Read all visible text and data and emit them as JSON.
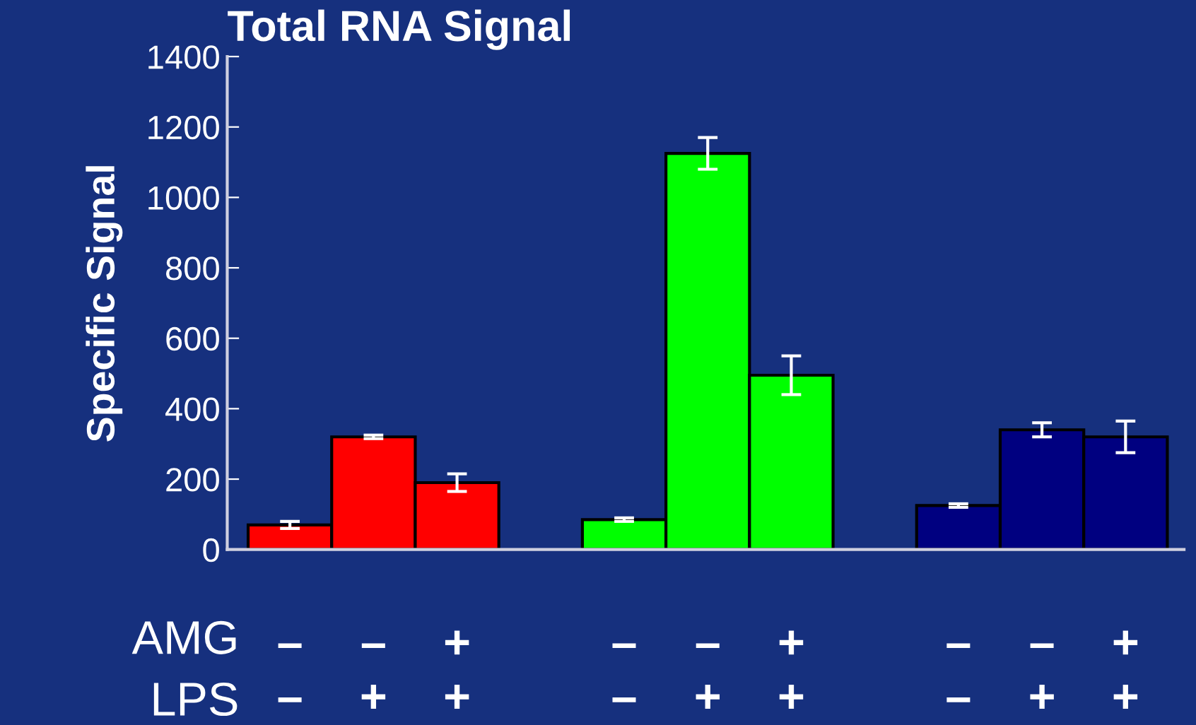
{
  "chart_data": {
    "type": "bar",
    "title": "Total RNA Signal",
    "ylabel": "Specific Signal",
    "categories": [
      "–\n–",
      "–\n+",
      "+\n+",
      null,
      "–\n–",
      "–\n+",
      "+\n+",
      null,
      "–\n–",
      "–\n+",
      "+\n+"
    ],
    "values": [
      70,
      320,
      190,
      null,
      85,
      1125,
      495,
      null,
      125,
      340,
      320
    ],
    "errors": [
      10,
      5,
      25,
      null,
      5,
      45,
      55,
      null,
      5,
      20,
      45
    ],
    "colors": [
      "#ff0000",
      "#ff0000",
      "#ff0000",
      null,
      "#00ff00",
      "#00ff00",
      "#00ff00",
      null,
      "#000080",
      "#000080",
      "#000080"
    ],
    "ylim": [
      0,
      1400
    ],
    "yticks": [
      0,
      200,
      400,
      600,
      800,
      1000,
      1200,
      1400
    ],
    "annotations": [
      "AMG",
      "LPS"
    ],
    "grid": false,
    "legend": false
  }
}
